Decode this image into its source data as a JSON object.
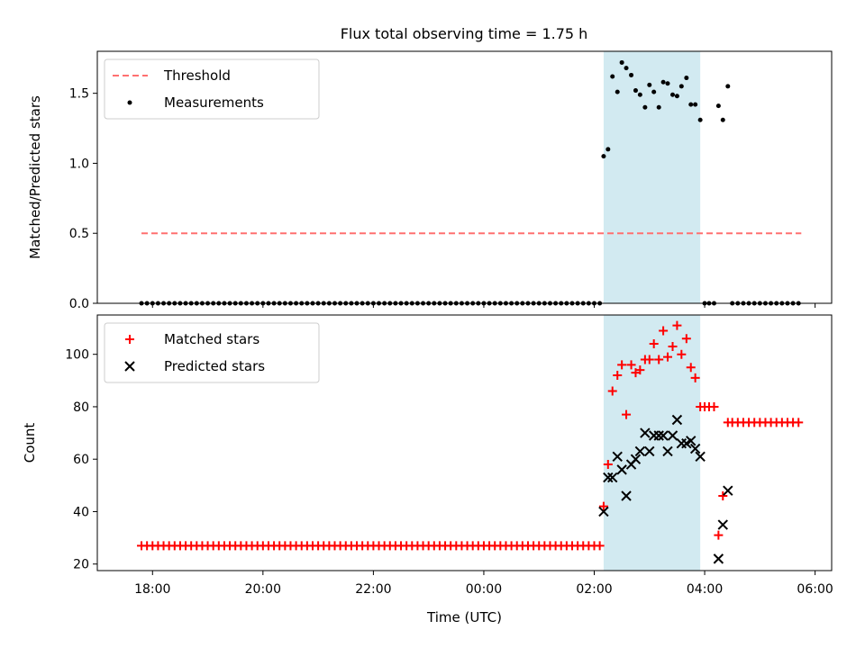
{
  "title": "Flux total observing time = 1.75 h",
  "shade": {
    "x_start": 2.17,
    "x_end": 3.92,
    "color": "#add8e6"
  },
  "chart_data": [
    {
      "type": "scatter",
      "title": "Flux total observing time = 1.75 h",
      "xlabel": "",
      "ylabel": "Matched/Predicted stars",
      "xlim": [
        -7.0,
        6.3
      ],
      "ylim": [
        0,
        1.8
      ],
      "yticks": [
        0.0,
        0.5,
        1.0,
        1.5
      ],
      "ytick_labels": [
        "0.0",
        "0.5",
        "1.0",
        "1.5"
      ],
      "legend": [
        "Threshold",
        "Measurements"
      ],
      "threshold": {
        "name": "Threshold",
        "value": 0.5,
        "x_start": -6.2,
        "x_end": 5.75,
        "color": "#ff7070"
      },
      "series": [
        {
          "name": "Measurements",
          "marker": "dot",
          "color": "#000000",
          "x_zero_range": {
            "start": -6.2,
            "end": 2.1,
            "step": 0.1
          },
          "y_zero": 0,
          "x": [
            2.17,
            2.25,
            2.33,
            2.42,
            2.5,
            2.58,
            2.67,
            2.75,
            2.83,
            2.92,
            3.0,
            3.08,
            3.17,
            3.25,
            3.33,
            3.42,
            3.5,
            3.58,
            3.67,
            3.75,
            3.83,
            3.92,
            4.0,
            4.08,
            4.17,
            4.25,
            4.33,
            4.42,
            4.5,
            4.6,
            4.7,
            4.8,
            4.9,
            5.0,
            5.1,
            5.2,
            5.3,
            5.4,
            5.5,
            5.6,
            5.7
          ],
          "y": [
            1.05,
            1.1,
            1.62,
            1.51,
            1.72,
            1.68,
            1.63,
            1.52,
            1.49,
            1.4,
            1.56,
            1.51,
            1.4,
            1.58,
            1.57,
            1.49,
            1.48,
            1.55,
            1.61,
            1.42,
            1.42,
            1.31,
            0,
            0,
            0,
            1.41,
            1.31,
            1.55,
            0,
            0,
            0,
            0,
            0,
            0,
            0,
            0,
            0,
            0,
            0,
            0,
            0
          ]
        }
      ]
    },
    {
      "type": "scatter",
      "xlabel": "Time (UTC)",
      "ylabel": "Count",
      "xlim": [
        -7.0,
        6.3
      ],
      "ylim": [
        17.5,
        115
      ],
      "yticks": [
        20,
        40,
        60,
        80,
        100
      ],
      "ytick_labels": [
        "20",
        "40",
        "60",
        "80",
        "100"
      ],
      "xticks": [
        -6,
        -4,
        -2,
        0,
        2,
        4,
        6
      ],
      "xtick_labels": [
        "18:00",
        "20:00",
        "22:00",
        "00:00",
        "02:00",
        "04:00",
        "06:00"
      ],
      "legend": [
        "Matched stars",
        "Predicted stars"
      ],
      "series": [
        {
          "name": "Matched stars",
          "marker": "plus",
          "color": "#ff0000",
          "x_const_range": {
            "start": -6.2,
            "end": 2.1,
            "step": 0.1,
            "y": 27
          },
          "x": [
            2.17,
            2.25,
            2.33,
            2.42,
            2.5,
            2.58,
            2.67,
            2.75,
            2.83,
            2.92,
            3.0,
            3.08,
            3.17,
            3.25,
            3.33,
            3.42,
            3.5,
            3.58,
            3.67,
            3.75,
            3.83,
            3.92,
            4.0,
            4.08,
            4.17,
            4.25,
            4.33,
            4.42,
            4.5,
            4.6,
            4.7,
            4.8,
            4.9,
            5.0,
            5.1,
            5.2,
            5.3,
            5.4,
            5.5,
            5.6,
            5.7
          ],
          "y": [
            42,
            58,
            86,
            92,
            96,
            77,
            96,
            93,
            94,
            98,
            98,
            104,
            98,
            109,
            99,
            103,
            111,
            100,
            106,
            95,
            91,
            80,
            80,
            80,
            80,
            31,
            46,
            74,
            74,
            74,
            74,
            74,
            74,
            74,
            74,
            74,
            74,
            74,
            74,
            74,
            74
          ]
        },
        {
          "name": "Predicted stars",
          "marker": "x",
          "color": "#000000",
          "x": [
            2.17,
            2.25,
            2.33,
            2.42,
            2.5,
            2.58,
            2.67,
            2.75,
            2.83,
            2.92,
            3.0,
            3.08,
            3.17,
            3.25,
            3.33,
            3.42,
            3.5,
            3.58,
            3.67,
            3.75,
            3.83,
            3.92,
            4.25,
            4.33,
            4.42
          ],
          "y": [
            40,
            53,
            53,
            61,
            56,
            46,
            58,
            60,
            63,
            70,
            63,
            69,
            69,
            69,
            63,
            69,
            75,
            66,
            66,
            67,
            64,
            61,
            22,
            35,
            48
          ]
        }
      ]
    }
  ]
}
